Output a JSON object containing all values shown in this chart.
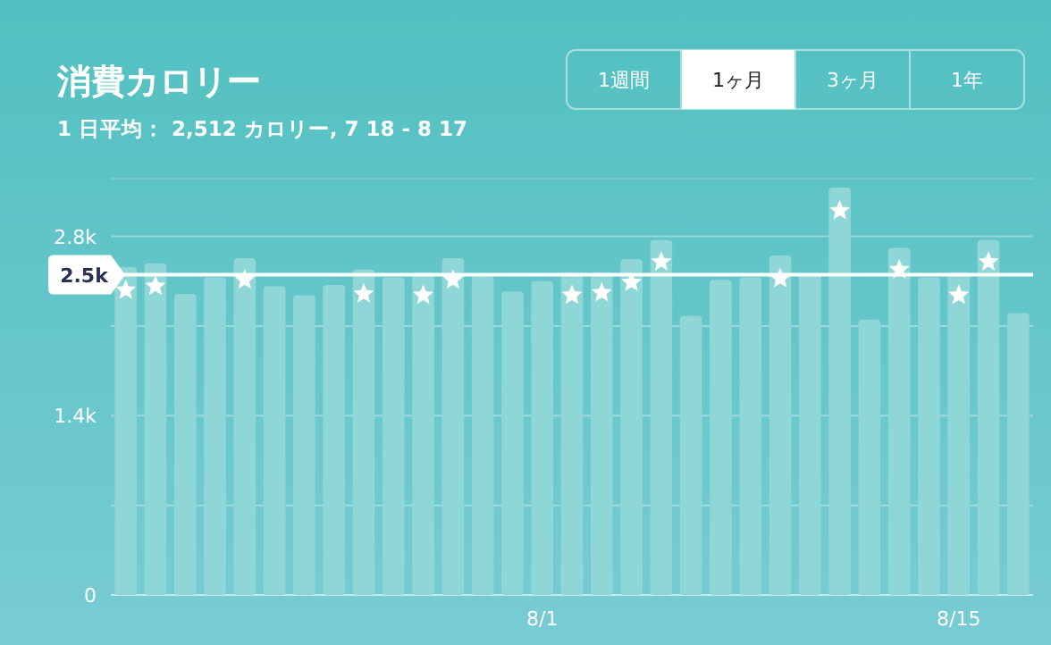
{
  "chart_data": {
    "type": "bar",
    "title": "消費カロリー",
    "subtitle": "1 日平均： 2,512 カロリー, 7 18 - 8 17",
    "annotations": [
      "1週間",
      "1ヶ月",
      "3ヶ月",
      "1年"
    ],
    "categories": [
      null,
      null,
      null,
      null,
      null,
      null,
      null,
      null,
      null,
      null,
      null,
      null,
      null,
      null,
      "8/1",
      null,
      null,
      null,
      null,
      null,
      null,
      null,
      null,
      null,
      null,
      null,
      null,
      null,
      "8/15",
      null,
      null
    ],
    "series": [
      {
        "type": "bar",
        "color": "#8fd6d6",
        "values": [
          2560,
          2590,
          2350,
          2480,
          2630,
          2410,
          2340,
          2420,
          2540,
          2480,
          2520,
          2630,
          2490,
          2370,
          2450,
          2520,
          2520,
          2620,
          2770,
          2180,
          2460,
          2480,
          2650,
          2510,
          3180,
          2150,
          2710,
          2480,
          2520,
          2770,
          2200
        ]
      },
      {
        "type": "scatter",
        "marker": "star",
        "color": "#ffffff",
        "values": [
          2380,
          2410,
          null,
          null,
          2460,
          null,
          null,
          null,
          2350,
          null,
          2340,
          2460,
          null,
          null,
          null,
          2340,
          2360,
          2440,
          2600,
          null,
          null,
          null,
          2470,
          null,
          3000,
          null,
          2540,
          null,
          2340,
          2600,
          null
        ]
      }
    ],
    "ylim": [
      0,
      3250
    ],
    "yticks": [
      0,
      {
        "value": 700,
        "label": null
      },
      {
        "value": 1400,
        "label": "1.4k"
      },
      {
        "value": 2100,
        "label": null
      },
      {
        "value": 2800,
        "label": "2.8k"
      }
    ],
    "grid": "y",
    "ref_lines": [
      {
        "axis": "y",
        "value": 2500,
        "label": "2.5k",
        "color": "#ffffff"
      }
    ]
  }
}
